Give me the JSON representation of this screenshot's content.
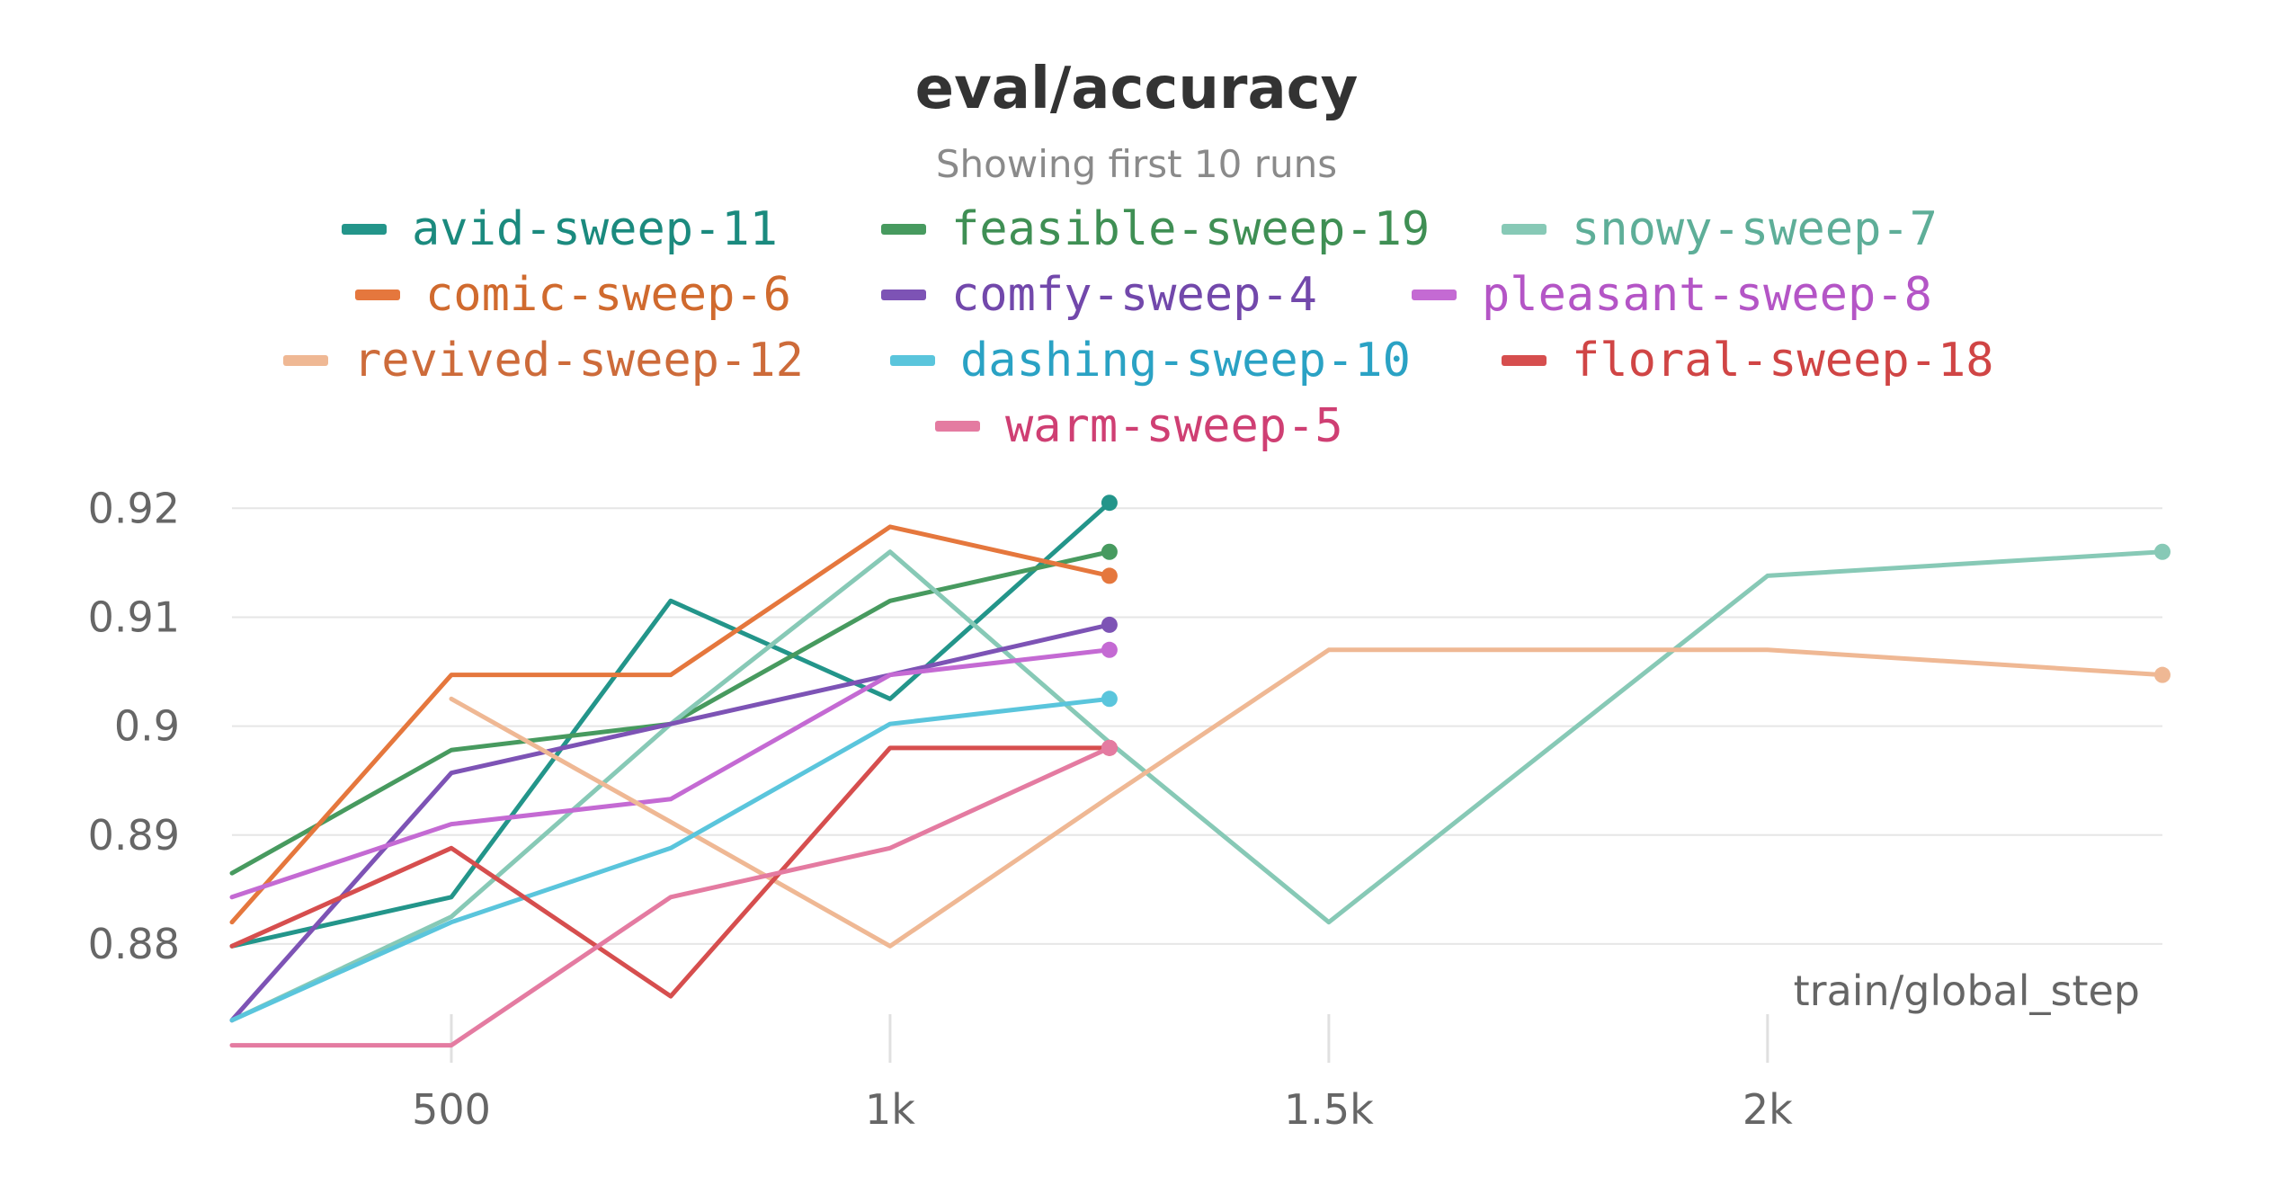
{
  "chart_data": {
    "type": "line",
    "title": "eval/accuracy",
    "subtitle": "Showing first 10 runs",
    "xlabel": "train/global_step",
    "ylabel": "",
    "xlim": [
      250,
      2450
    ],
    "ylim": [
      0.8705,
      0.9225
    ],
    "x_ticks": [
      500,
      1000,
      1500,
      2000
    ],
    "x_tick_labels": [
      "500",
      "1k",
      "1.5k",
      "2k"
    ],
    "y_ticks": [
      0.88,
      0.89,
      0.9,
      0.91,
      0.92
    ],
    "y_tick_labels": [
      "0.88",
      "0.89",
      "0.9",
      "0.91",
      "0.92"
    ],
    "grid": true,
    "legend_position": "top",
    "series": [
      {
        "name": "avid-sweep-11",
        "color": "#23958a",
        "text_color": "#1b8a7e",
        "opacity": 1,
        "x": [
          250,
          500,
          750,
          1000,
          1250
        ],
        "y": [
          0.8798,
          0.8843,
          0.9115,
          0.9025,
          0.9205
        ]
      },
      {
        "name": "feasible-sweep-19",
        "color": "#479a5f",
        "text_color": "#3f8f54",
        "opacity": 1,
        "x": [
          250,
          500,
          750,
          1000,
          1250
        ],
        "y": [
          0.8865,
          0.8978,
          0.9002,
          0.9115,
          0.916
        ]
      },
      {
        "name": "snowy-sweep-7",
        "color": "#87c9b6",
        "text_color": "#5eae98",
        "opacity": 1,
        "x": [
          250,
          500,
          750,
          1000,
          1250,
          1500,
          2000,
          2450
        ],
        "y": [
          0.873,
          0.8825,
          0.9002,
          0.916,
          0.8985,
          0.882,
          0.9138,
          0.916
        ]
      },
      {
        "name": "comic-sweep-6",
        "color": "#e5773d",
        "text_color": "#d06a2e",
        "opacity": 1,
        "x": [
          250,
          500,
          750,
          1000,
          1250
        ],
        "y": [
          0.882,
          0.9047,
          0.9047,
          0.9183,
          0.9138
        ]
      },
      {
        "name": "comfy-sweep-4",
        "color": "#7d53b5",
        "text_color": "#7248ab",
        "opacity": 1,
        "x": [
          250,
          500,
          750,
          1000,
          1250
        ],
        "y": [
          0.873,
          0.8957,
          0.9002,
          0.9047,
          0.9093
        ]
      },
      {
        "name": "pleasant-sweep-8",
        "color": "#c46ad3",
        "text_color": "#b455c6",
        "opacity": 1,
        "x": [
          250,
          500,
          750,
          1000,
          1250
        ],
        "y": [
          0.8843,
          0.891,
          0.8933,
          0.9047,
          0.907
        ]
      },
      {
        "name": "revived-sweep-12",
        "color": "#efb894",
        "text_color": "#cd6b3a",
        "opacity": 1,
        "x": [
          500,
          750,
          1000,
          1250,
          1500,
          2000,
          2450
        ],
        "y": [
          0.9025,
          0.8912,
          0.8798,
          0.8935,
          0.907,
          0.907,
          0.9047
        ]
      },
      {
        "name": "dashing-sweep-10",
        "color": "#5ac5dc",
        "text_color": "#2aa2c4",
        "opacity": 1,
        "x": [
          250,
          500,
          750,
          1000,
          1250
        ],
        "y": [
          0.873,
          0.882,
          0.8888,
          0.9002,
          0.9025
        ]
      },
      {
        "name": "floral-sweep-18",
        "color": "#d64e4e",
        "text_color": "#d04545",
        "opacity": 1,
        "x": [
          250,
          500,
          750,
          1000,
          1250
        ],
        "y": [
          0.8798,
          0.8888,
          0.8752,
          0.898,
          0.898
        ]
      },
      {
        "name": "warm-sweep-5",
        "color": "#e47ba1",
        "text_color": "#cf3f73",
        "opacity": 1,
        "x": [
          250,
          500,
          750,
          1000,
          1250
        ],
        "y": [
          0.8707,
          0.8707,
          0.8843,
          0.8888,
          0.898
        ]
      }
    ]
  }
}
